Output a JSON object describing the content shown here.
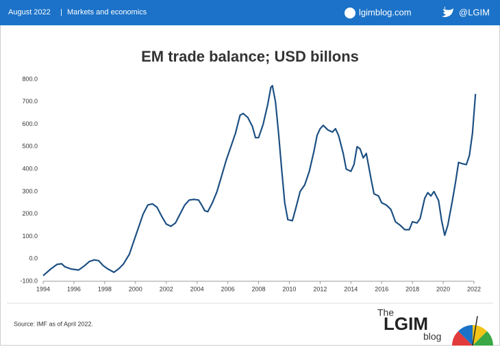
{
  "header": {
    "date": "August 2022",
    "separator": "|",
    "section": "Markets and economics",
    "site": "lgimblog.com",
    "twitter": "@LGIM"
  },
  "footer": {
    "source": "Source: IMF  as of April 2022.",
    "logo_the": "The",
    "logo_main": "LGIM",
    "logo_blog": "blog"
  },
  "chart_data": {
    "type": "line",
    "title": "EM trade balance; USD billons",
    "color": "#1c4f82",
    "x": [
      1994.0,
      1994.5,
      1994.9,
      1995.2,
      1995.4,
      1995.8,
      1996.3,
      1996.7,
      1997.0,
      1997.3,
      1997.6,
      1997.9,
      1998.2,
      1998.6,
      1998.9,
      1999.2,
      1999.6,
      1999.9,
      2000.2,
      2000.5,
      2000.8,
      2001.1,
      2001.4,
      2001.7,
      2002.0,
      2002.3,
      2002.6,
      2002.9,
      2003.2,
      2003.5,
      2003.8,
      2004.1,
      2004.3,
      2004.5,
      2004.7,
      2005.0,
      2005.3,
      2005.6,
      2005.9,
      2006.2,
      2006.5,
      2006.8,
      2007.0,
      2007.3,
      2007.6,
      2007.8,
      2008.0,
      2008.3,
      2008.6,
      2008.8,
      2008.9,
      2009.1,
      2009.3,
      2009.5,
      2009.7,
      2009.9,
      2010.2,
      2010.4,
      2010.7,
      2011.0,
      2011.3,
      2011.6,
      2011.8,
      2012.0,
      2012.2,
      2012.5,
      2012.8,
      2013.0,
      2013.2,
      2013.5,
      2013.7,
      2014.0,
      2014.2,
      2014.4,
      2014.6,
      2014.8,
      2015.0,
      2015.3,
      2015.5,
      2015.8,
      2016.0,
      2016.3,
      2016.6,
      2016.9,
      2017.2,
      2017.5,
      2017.8,
      2018.0,
      2018.3,
      2018.5,
      2018.8,
      2019.0,
      2019.2,
      2019.4,
      2019.7,
      2019.9,
      2020.1,
      2020.3,
      2020.6,
      2020.8,
      2021.0,
      2021.2,
      2021.5,
      2021.7,
      2021.9,
      2022.1
    ],
    "values": [
      -75,
      -45,
      -25,
      -22,
      -35,
      -45,
      -50,
      -30,
      -12,
      -5,
      -8,
      -30,
      -45,
      -60,
      -45,
      -25,
      20,
      80,
      140,
      200,
      240,
      245,
      230,
      190,
      155,
      145,
      160,
      200,
      240,
      262,
      265,
      262,
      240,
      215,
      210,
      250,
      300,
      370,
      440,
      500,
      560,
      640,
      648,
      630,
      590,
      540,
      540,
      600,
      690,
      765,
      772,
      700,
      560,
      400,
      250,
      175,
      170,
      220,
      300,
      330,
      390,
      480,
      550,
      580,
      595,
      575,
      565,
      580,
      550,
      470,
      400,
      390,
      420,
      500,
      490,
      450,
      470,
      360,
      290,
      280,
      250,
      240,
      220,
      165,
      150,
      130,
      130,
      165,
      160,
      180,
      270,
      295,
      280,
      300,
      260,
      170,
      105,
      150,
      260,
      340,
      430,
      425,
      420,
      460,
      560,
      735
    ],
    "xlim": [
      1994,
      2022
    ],
    "xticks": [
      1994,
      1996,
      1998,
      2000,
      2002,
      2004,
      2006,
      2008,
      2010,
      2012,
      2014,
      2016,
      2018,
      2020,
      2022
    ],
    "ylim": [
      -100,
      800
    ],
    "yticks": [
      {
        "value": -100,
        "label": "-100.0"
      },
      {
        "value": 0,
        "label": "0.0"
      },
      {
        "value": 100,
        "label": "100.0"
      },
      {
        "value": 200,
        "label": "200.0"
      },
      {
        "value": 300,
        "label": "300.0"
      },
      {
        "value": 400,
        "label": "400.0"
      },
      {
        "value": 500,
        "label": "500.0"
      },
      {
        "value": 600,
        "label": "600.0"
      },
      {
        "value": 700,
        "label": "700.0"
      },
      {
        "value": 800,
        "label": "800.0"
      }
    ]
  }
}
